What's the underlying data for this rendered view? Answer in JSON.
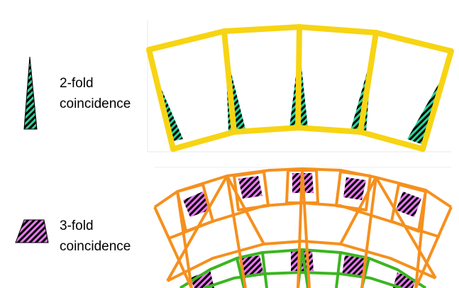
{
  "legend": [
    {
      "id": "two-fold",
      "line1": "2-fold",
      "line2": "coincidence",
      "fill": "#2bd39a",
      "hatch": "#000000"
    },
    {
      "id": "three-fold",
      "line1": "3-fold",
      "line2": "coincidence",
      "fill": "#e879f0",
      "hatch": "#000000"
    }
  ],
  "colors": {
    "top_frame": "#f7d413",
    "bottom_frame": "#f5901e",
    "inner_frame": "#3cb521",
    "panel_border": "#e8e8e8"
  }
}
